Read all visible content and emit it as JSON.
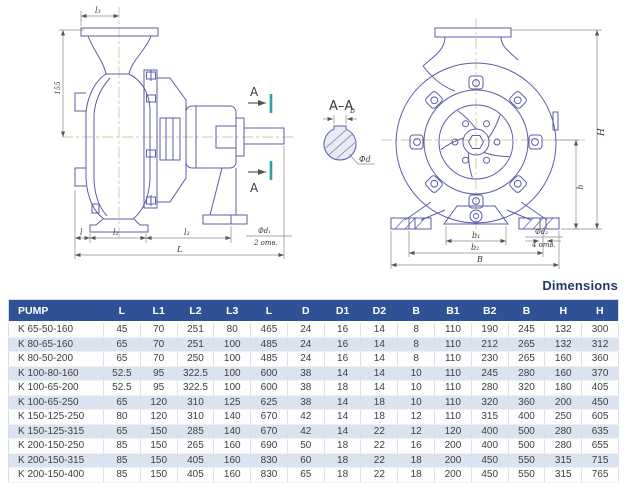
{
  "title": "Dimensions",
  "drawing": {
    "side_view": {
      "dim_l3": "l₃",
      "dim_height": "155",
      "section_letter": "A",
      "dim_l": "l",
      "dim_l1": "l₁",
      "dim_l2": "l₂",
      "dim_L": "L",
      "holes_dia": "Фd₁",
      "holes_count": "2 отв."
    },
    "section_view": {
      "title": "A–A",
      "dim_b": "b",
      "dim_d": "Фd"
    },
    "front_view": {
      "dim_H": "H",
      "dim_h": "h",
      "dim_b1": "b₁",
      "dim_b2": "b₂",
      "dim_B": "B",
      "holes_dia": "Фd₂",
      "holes_count": "4 отв."
    }
  },
  "colors": {
    "header_bg": "#2f5296",
    "row_alt": "#dbe3f1",
    "line_blue": "#5c5caa",
    "section_teal": "#2f9fa3",
    "title_text": "#1f3a68"
  },
  "table": {
    "headers": [
      "PUMP",
      "L",
      "L1",
      "L2",
      "L3",
      "L",
      "D",
      "D1",
      "D2",
      "B",
      "B1",
      "B2",
      "B",
      "H",
      "H"
    ],
    "rows": [
      [
        "K 65-50-160",
        45,
        70,
        251,
        80,
        465,
        24,
        16,
        14,
        8,
        110,
        190,
        245,
        132,
        300
      ],
      [
        "K 80-65-160",
        65,
        70,
        251,
        100,
        485,
        24,
        16,
        14,
        8,
        110,
        212,
        265,
        132,
        312
      ],
      [
        "K 80-50-200",
        65,
        70,
        250,
        100,
        485,
        24,
        16,
        14,
        8,
        110,
        230,
        265,
        160,
        360
      ],
      [
        "K 100-80-160",
        52.5,
        95,
        322.5,
        100,
        600,
        38,
        14,
        14,
        10,
        110,
        245,
        280,
        160,
        370
      ],
      [
        "K 100-65-200",
        52.5,
        95,
        322.5,
        100,
        600,
        38,
        18,
        14,
        10,
        110,
        280,
        320,
        180,
        405
      ],
      [
        "K 100-65-250",
        65,
        120,
        310,
        125,
        625,
        38,
        14,
        18,
        10,
        110,
        320,
        360,
        200,
        450
      ],
      [
        "K 150-125-250",
        80,
        120,
        310,
        140,
        670,
        42,
        14,
        18,
        12,
        110,
        315,
        400,
        250,
        605
      ],
      [
        "K 150-125-315",
        65,
        150,
        285,
        140,
        670,
        42,
        14,
        22,
        12,
        120,
        400,
        500,
        280,
        635
      ],
      [
        "K 200-150-250",
        85,
        150,
        265,
        160,
        690,
        50,
        18,
        22,
        16,
        200,
        400,
        500,
        280,
        655
      ],
      [
        "K 200-150-315",
        85,
        150,
        405,
        160,
        830,
        60,
        18,
        22,
        18,
        200,
        450,
        550,
        315,
        715
      ],
      [
        "K 200-150-400",
        85,
        150,
        405,
        160,
        830,
        65,
        18,
        22,
        18,
        200,
        450,
        550,
        315,
        765
      ]
    ]
  }
}
